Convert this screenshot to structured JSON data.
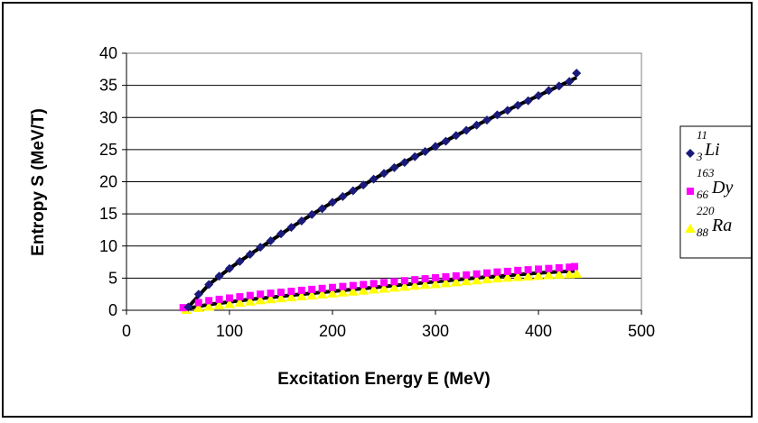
{
  "chart_data": {
    "type": "scatter",
    "xlabel": "Excitation Energy E (MeV)",
    "ylabel": "Entropy S (MeV/T)",
    "xlim": [
      0,
      500
    ],
    "ylim": [
      0,
      40
    ],
    "xticks": [
      "0",
      "100",
      "200",
      "300",
      "400",
      "500"
    ],
    "yticks": [
      "0",
      "5",
      "10",
      "15",
      "20",
      "25",
      "30",
      "35",
      "40"
    ],
    "grid": "horizontal",
    "legend_position": "right",
    "series": [
      {
        "name": "Li",
        "mass": "11",
        "charge": "3",
        "marker": "diamond",
        "color": "#1a1a7a",
        "x": [
          60,
          70,
          80,
          90,
          100,
          110,
          120,
          130,
          140,
          150,
          160,
          170,
          180,
          190,
          200,
          210,
          220,
          230,
          240,
          250,
          260,
          270,
          280,
          290,
          300,
          310,
          320,
          330,
          340,
          350,
          360,
          370,
          380,
          390,
          400,
          410,
          420,
          430,
          437
        ],
        "y": [
          0.5,
          2.5,
          4.0,
          5.3,
          6.5,
          7.6,
          8.7,
          9.8,
          10.8,
          11.9,
          12.9,
          13.9,
          14.9,
          15.8,
          16.8,
          17.7,
          18.6,
          19.5,
          20.4,
          21.3,
          22.2,
          23.0,
          23.9,
          24.7,
          25.5,
          26.3,
          27.2,
          28.0,
          28.8,
          29.6,
          30.4,
          31.1,
          31.9,
          32.6,
          33.4,
          34.2,
          34.9,
          35.6,
          36.9
        ]
      },
      {
        "name": "Dy",
        "mass": "163",
        "charge": "66",
        "marker": "square",
        "color": "#ff00ff",
        "x": [
          55,
          70,
          80,
          90,
          100,
          110,
          120,
          130,
          140,
          150,
          160,
          170,
          180,
          190,
          200,
          210,
          220,
          230,
          240,
          250,
          260,
          270,
          280,
          290,
          300,
          310,
          320,
          330,
          340,
          350,
          360,
          370,
          380,
          390,
          400,
          410,
          420,
          430,
          435
        ],
        "y": [
          0.4,
          1.2,
          1.5,
          1.7,
          1.9,
          2.1,
          2.3,
          2.5,
          2.65,
          2.8,
          2.95,
          3.1,
          3.25,
          3.4,
          3.55,
          3.7,
          3.85,
          4.0,
          4.15,
          4.3,
          4.45,
          4.6,
          4.75,
          4.9,
          5.05,
          5.2,
          5.35,
          5.5,
          5.65,
          5.8,
          5.95,
          6.05,
          6.2,
          6.3,
          6.4,
          6.5,
          6.6,
          6.7,
          6.8
        ]
      },
      {
        "name": "Ra",
        "mass": "220",
        "charge": "88",
        "marker": "triangle",
        "color": "#ffff00",
        "x": [
          58,
          70,
          80,
          90,
          100,
          110,
          120,
          130,
          140,
          150,
          160,
          170,
          180,
          190,
          200,
          210,
          220,
          230,
          240,
          250,
          260,
          270,
          280,
          290,
          300,
          310,
          320,
          330,
          340,
          350,
          360,
          370,
          380,
          390,
          400,
          410,
          420,
          430,
          437
        ],
        "y": [
          0.0,
          0.3,
          0.5,
          0.7,
          0.9,
          1.1,
          1.3,
          1.5,
          1.65,
          1.8,
          1.95,
          2.1,
          2.25,
          2.4,
          2.55,
          2.7,
          2.85,
          3.0,
          3.15,
          3.3,
          3.45,
          3.6,
          3.75,
          3.9,
          4.0,
          4.15,
          4.3,
          4.45,
          4.6,
          4.75,
          4.9,
          5.0,
          5.1,
          5.2,
          5.3,
          5.4,
          5.5,
          5.55,
          5.6
        ]
      }
    ],
    "fit_lines": [
      {
        "color": "#000000",
        "x": [
          60,
          80,
          100,
          120,
          140,
          160,
          180,
          200,
          220,
          240,
          260,
          280,
          300,
          320,
          340,
          360,
          380,
          400,
          420,
          437
        ],
        "y": [
          0.5,
          4.0,
          6.5,
          8.7,
          10.8,
          12.9,
          14.9,
          16.8,
          18.6,
          20.4,
          22.2,
          23.9,
          25.5,
          27.2,
          28.8,
          30.4,
          31.9,
          33.4,
          34.9,
          36.2
        ]
      },
      {
        "color": "#000000",
        "x": [
          60,
          80,
          100,
          120,
          140,
          160,
          180,
          200,
          220,
          240,
          260,
          280,
          300,
          320,
          340,
          360,
          380,
          400,
          420,
          435
        ],
        "y": [
          0.3,
          0.9,
          1.3,
          1.7,
          2.0,
          2.35,
          2.65,
          2.95,
          3.25,
          3.55,
          3.85,
          4.15,
          4.45,
          4.75,
          5.05,
          5.3,
          5.55,
          5.8,
          6.0,
          6.1
        ]
      }
    ]
  }
}
